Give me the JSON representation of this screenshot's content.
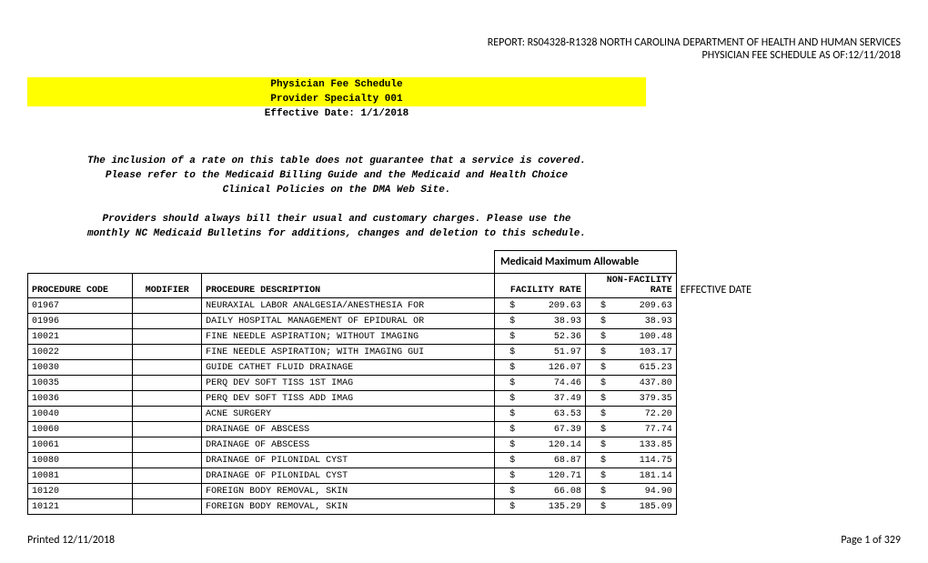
{
  "header": {
    "line1": "REPORT: RS04328-R1328 NORTH CAROLINA DEPARTMENT OF HEALTH AND HUMAN SERVICES",
    "line2": "PHYSICIAN FEE SCHEDULE AS OF:12/11/2018"
  },
  "title": {
    "line1": "Physician Fee Schedule",
    "line2": "Provider Specialty 001",
    "line3": "Effective Date:  1/1/2018"
  },
  "notes": {
    "p1": "The inclusion of a rate on this table does not guarantee that a service is covered.",
    "p2": "Please refer to the Medicaid Billing Guide and the Medicaid and Health Choice",
    "p3": "Clinical Policies on the DMA Web Site.",
    "p4": "Providers should always bill their usual and customary charges.  Please use the",
    "p5": "monthly NC Medicaid Bulletins for additions, changes and deletion to this schedule."
  },
  "table": {
    "mma_header": "Medicaid Maximum Allowable",
    "columns": {
      "code": "PROCEDURE CODE",
      "mod": "MODIFIER",
      "desc": "PROCEDURE DESCRIPTION",
      "fac": "FACILITY RATE",
      "nonfac_l1": "NON-FACILITY",
      "nonfac_l2": "RATE",
      "eff": "EFFECTIVE DATE"
    },
    "rows": [
      {
        "code": "01967",
        "mod": "",
        "desc": "NEURAXIAL LABOR ANALGESIA/ANESTHESIA FOR",
        "fac": "209.63",
        "nonfac": "209.63"
      },
      {
        "code": "01996",
        "mod": "",
        "desc": "DAILY HOSPITAL MANAGEMENT OF EPIDURAL OR",
        "fac": "38.93",
        "nonfac": "38.93"
      },
      {
        "code": "10021",
        "mod": "",
        "desc": "FINE NEEDLE ASPIRATION; WITHOUT IMAGING",
        "fac": "52.36",
        "nonfac": "100.48"
      },
      {
        "code": "10022",
        "mod": "",
        "desc": "FINE NEEDLE ASPIRATION; WITH IMAGING GUI",
        "fac": "51.97",
        "nonfac": "103.17"
      },
      {
        "code": "10030",
        "mod": "",
        "desc": "GUIDE CATHET FLUID DRAINAGE",
        "fac": "126.07",
        "nonfac": "615.23"
      },
      {
        "code": "10035",
        "mod": "",
        "desc": "PERQ DEV SOFT TISS 1ST IMAG",
        "fac": "74.46",
        "nonfac": "437.80"
      },
      {
        "code": "10036",
        "mod": "",
        "desc": "PERQ DEV SOFT TISS ADD IMAG",
        "fac": "37.49",
        "nonfac": "379.35"
      },
      {
        "code": "10040",
        "mod": "",
        "desc": "ACNE SURGERY",
        "fac": "63.53",
        "nonfac": "72.20"
      },
      {
        "code": "10060",
        "mod": "",
        "desc": "DRAINAGE OF ABSCESS",
        "fac": "67.39",
        "nonfac": "77.74"
      },
      {
        "code": "10061",
        "mod": "",
        "desc": "DRAINAGE OF ABSCESS",
        "fac": "120.14",
        "nonfac": "133.85"
      },
      {
        "code": "10080",
        "mod": "",
        "desc": "DRAINAGE OF PILONIDAL CYST",
        "fac": "68.87",
        "nonfac": "114.75"
      },
      {
        "code": "10081",
        "mod": "",
        "desc": "DRAINAGE OF PILONIDAL CYST",
        "fac": "120.71",
        "nonfac": "181.14"
      },
      {
        "code": "10120",
        "mod": "",
        "desc": "FOREIGN BODY REMOVAL, SKIN",
        "fac": "66.08",
        "nonfac": "94.90"
      },
      {
        "code": "10121",
        "mod": "",
        "desc": "FOREIGN BODY REMOVAL, SKIN",
        "fac": "135.29",
        "nonfac": "185.09"
      }
    ]
  },
  "footer": {
    "left": "Printed 12/11/2018",
    "right": "Page 1 of 329"
  },
  "style": {
    "highlight_bg": "#ffff00",
    "border_color": "#000000",
    "page_bg": "#ffffff",
    "mono_font": "Courier New",
    "sans_font": "Calibri"
  }
}
